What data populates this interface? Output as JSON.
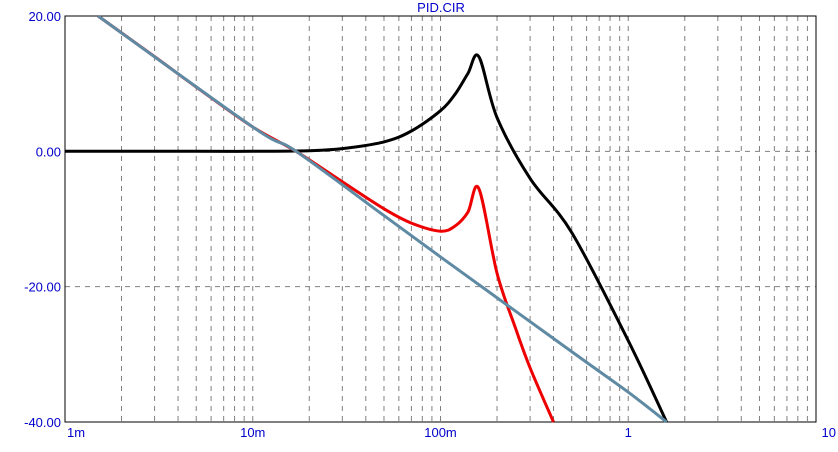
{
  "chart_data": {
    "type": "line",
    "title": "PID.CIR",
    "xscale": "log",
    "xlim": [
      0.001,
      10
    ],
    "ylim": [
      -40,
      20
    ],
    "x_tick_labels": [
      "1m",
      "10m",
      "100m",
      "1",
      "10"
    ],
    "y_tick_labels": [
      "20.00",
      "0.00",
      "-20.00",
      "-40.00"
    ],
    "grid": true,
    "series": [
      {
        "color": "#000000",
        "x": [
          0.001,
          0.005,
          0.01,
          0.02,
          0.03,
          0.05,
          0.07,
          0.1,
          0.12,
          0.14,
          0.16,
          0.2,
          0.3,
          0.5,
          1,
          1.6
        ],
        "y": [
          0,
          0,
          0,
          0.1,
          0.4,
          1.4,
          3.0,
          6.0,
          8.5,
          11.5,
          14.0,
          5.0,
          -4.0,
          -12.0,
          -28.0,
          -40.0
        ]
      },
      {
        "color": "#ee0000",
        "x": [
          0.0015,
          0.003,
          0.005,
          0.01,
          0.017,
          0.03,
          0.05,
          0.07,
          0.1,
          0.12,
          0.14,
          0.16,
          0.2,
          0.25,
          0.3,
          0.4
        ],
        "y": [
          20.0,
          14.0,
          9.5,
          3.6,
          0,
          -4.5,
          -8.5,
          -10.6,
          -11.8,
          -11.0,
          -9.0,
          -5.5,
          -18.0,
          -26.0,
          -32.0,
          -40.0
        ]
      },
      {
        "color": "#5f8aa3",
        "x": [
          0.0015,
          0.01,
          0.017,
          0.05,
          0.1,
          0.5,
          1,
          1.6
        ],
        "y": [
          20.0,
          3.6,
          0,
          -9.5,
          -15.6,
          -29.6,
          -35.6,
          -40.0
        ]
      }
    ]
  }
}
